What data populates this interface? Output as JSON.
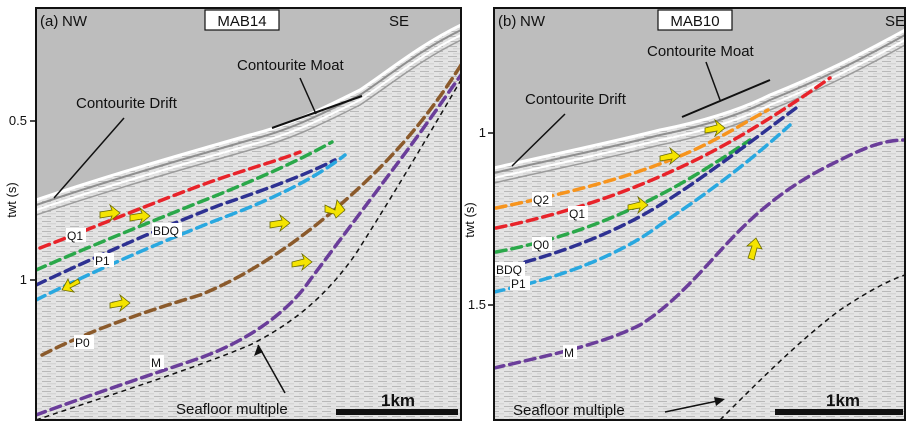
{
  "panels": [
    {
      "id": "a",
      "panel_letter": "(a)",
      "line_name": "MAB14",
      "left_direction": "NW",
      "right_direction": "SE",
      "y_axis_label": "twt (s)",
      "y_ticks": [
        "0.5",
        "1"
      ],
      "annotations": {
        "contourite_drift": "Contourite Drift",
        "contourite_moat": "Contourite Moat",
        "seafloor_multiple": "Seafloor  multiple",
        "scale_bar": "1km"
      },
      "horizons": [
        {
          "label": "Q1",
          "color": "#e8232a"
        },
        {
          "label": "BDQ",
          "color": "#2e3192"
        },
        {
          "label": "P1",
          "color": "#29a8e0"
        },
        {
          "label": "P0",
          "color": "#8b5a2b"
        },
        {
          "label": "M",
          "color": "#6a3d9a"
        }
      ],
      "unlabeled_horizon_colors": [
        "#2aa84a"
      ]
    },
    {
      "id": "b",
      "panel_letter": "(b)",
      "line_name": "MAB10",
      "left_direction": "NW",
      "right_direction": "SE",
      "y_axis_label": "twt (s)",
      "y_ticks": [
        "1",
        "1.5"
      ],
      "annotations": {
        "contourite_drift": "Contourite Drift",
        "contourite_moat": "Contourite Moat",
        "seafloor_multiple": "Seafloor  multiple",
        "scale_bar": "1km"
      },
      "horizons": [
        {
          "label": "Q2",
          "color": "#f7941d"
        },
        {
          "label": "Q1",
          "color": "#e8232a"
        },
        {
          "label": "Q0",
          "color": "#2aa84a"
        },
        {
          "label": "BDQ",
          "color": "#2e3192"
        },
        {
          "label": "P1",
          "color": "#29a8e0"
        },
        {
          "label": "M",
          "color": "#6a3d9a"
        }
      ],
      "unlabeled_horizon_colors": []
    }
  ],
  "colors": {
    "water": "#bdbdbd",
    "sediment": "#e6e6e6",
    "arrow_fill": "#f5e400",
    "multiple_line": "#111111"
  }
}
